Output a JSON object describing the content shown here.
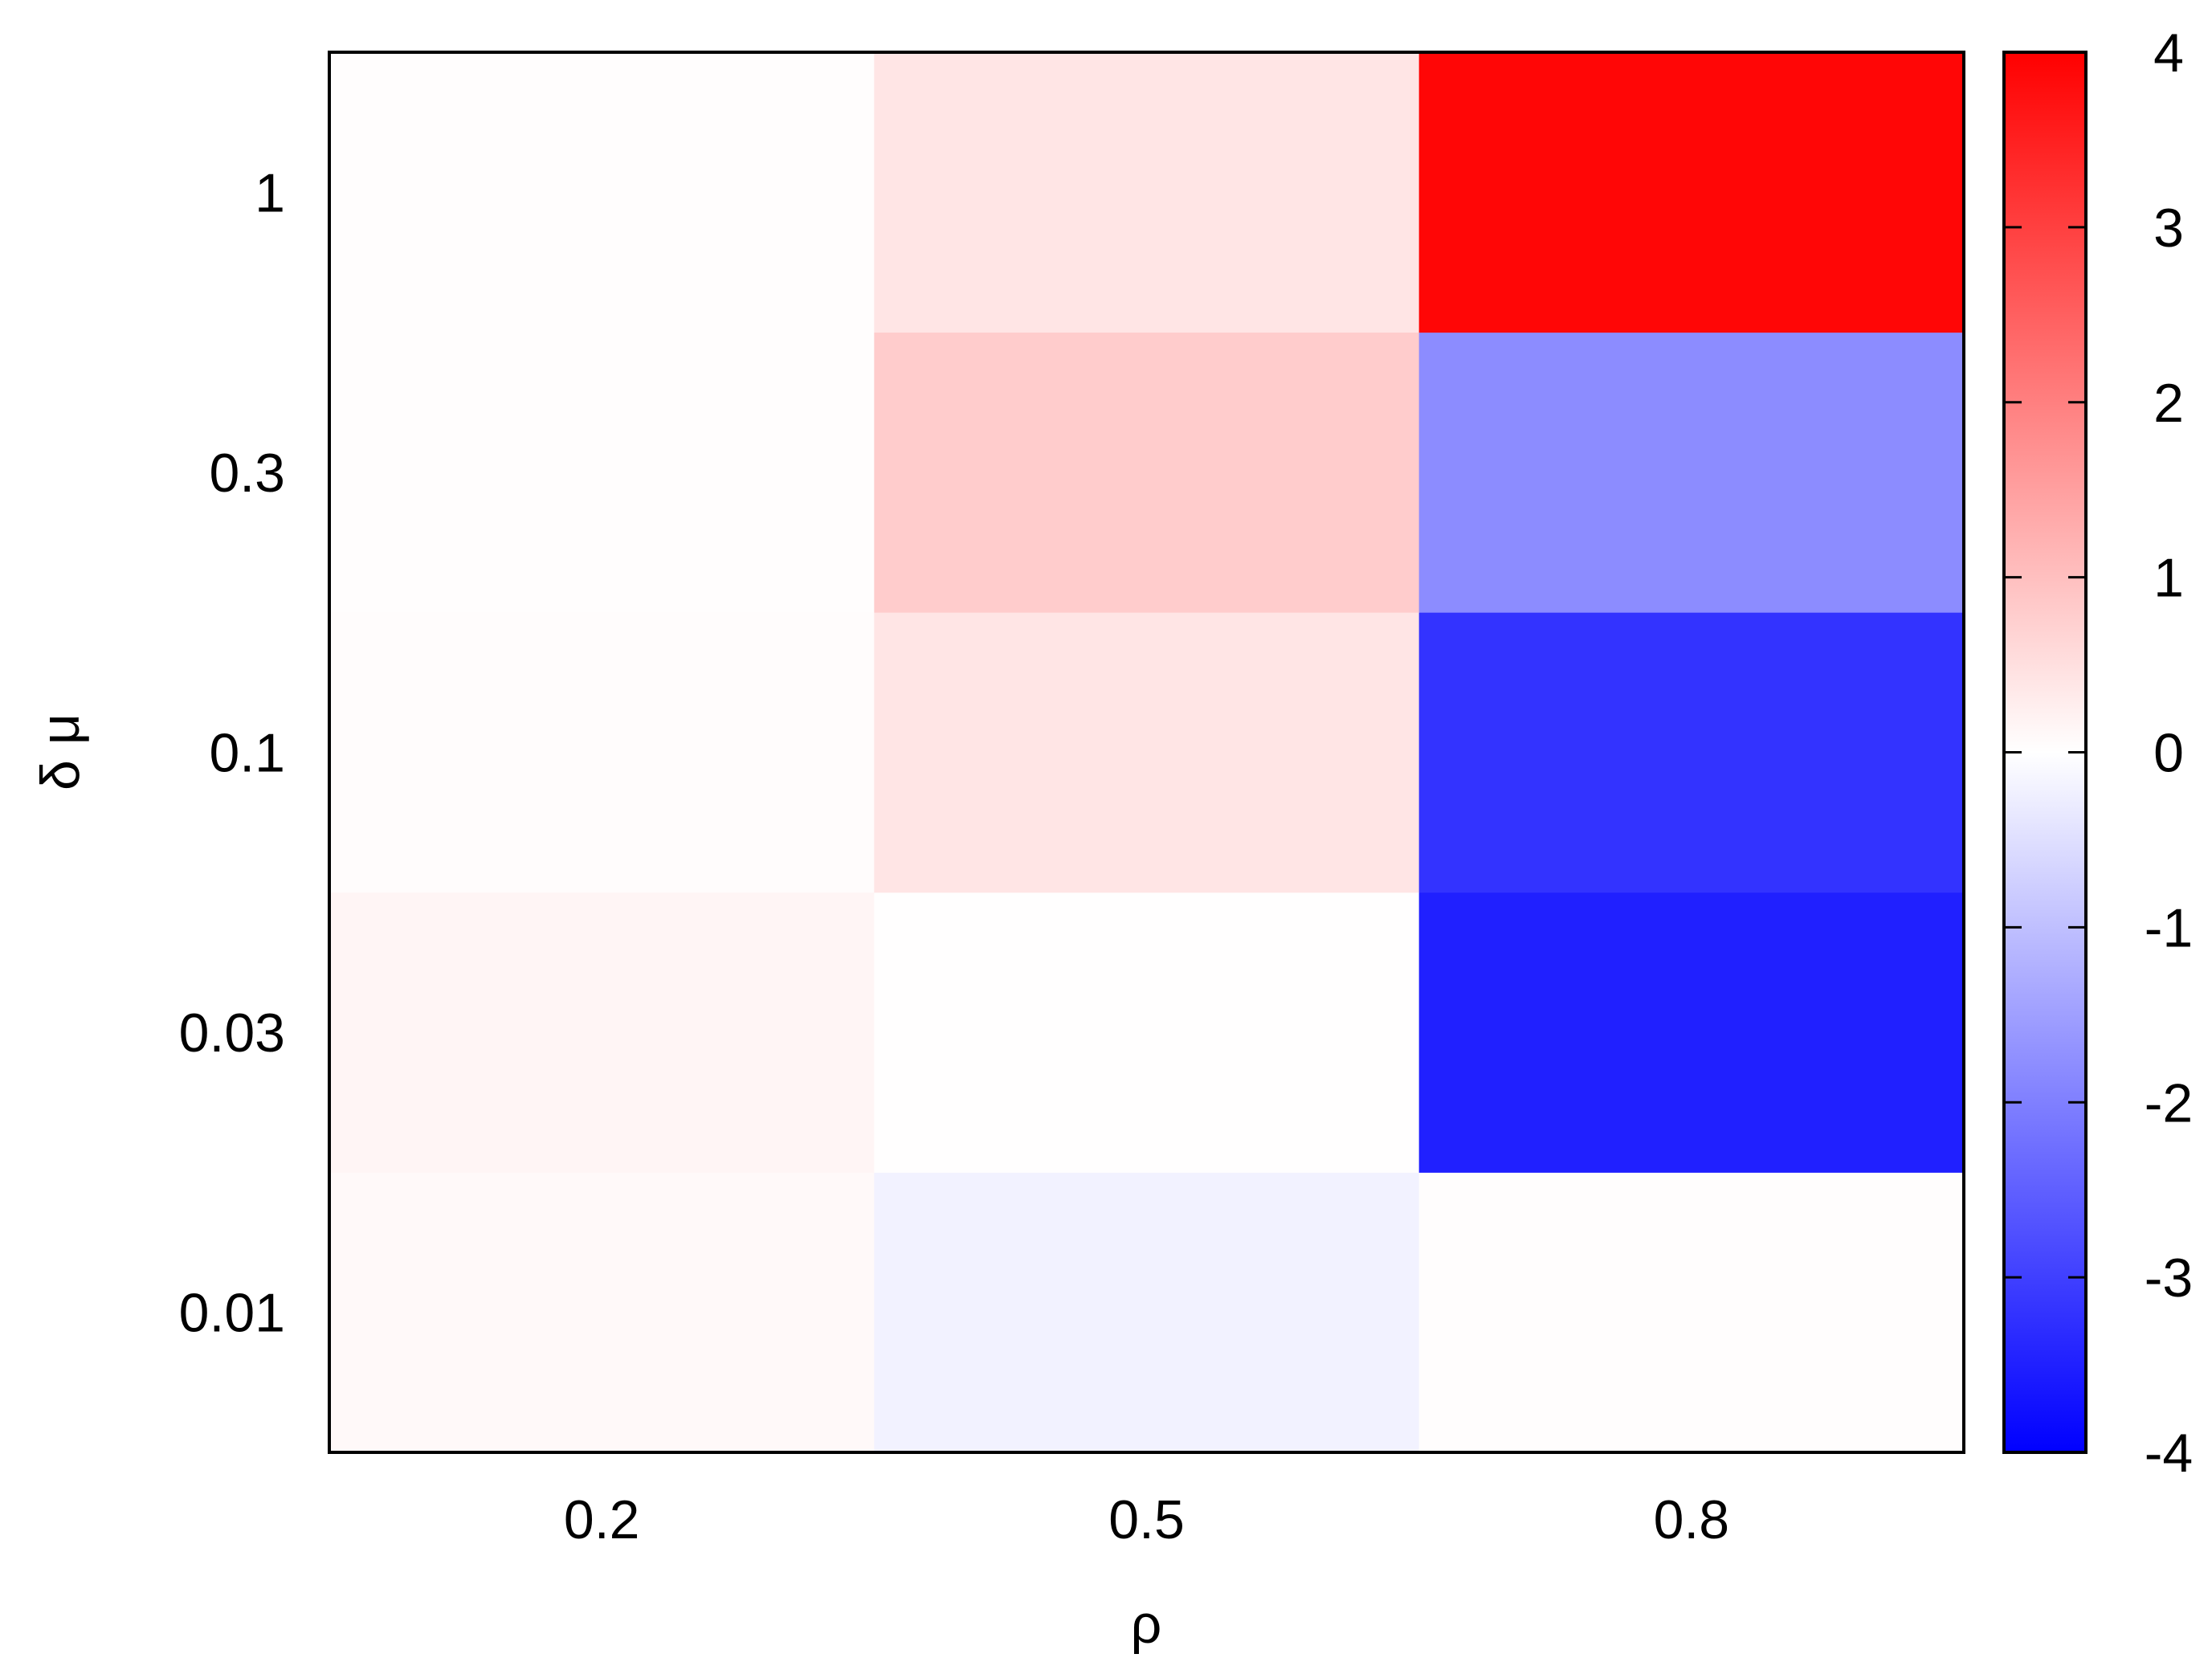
{
  "chart_data": {
    "type": "heatmap",
    "xlabel": "ρ",
    "ylabel": "δ μ",
    "x_categories": [
      "0.2",
      "0.5",
      "0.8"
    ],
    "y_categories": [
      "0.01",
      "0.03",
      "0.1",
      "0.3",
      "1"
    ],
    "values": [
      [
        0.1,
        -0.2,
        0.03
      ],
      [
        0.15,
        0.01,
        -3.5
      ],
      [
        0.05,
        0.4,
        -3.2
      ],
      [
        0.03,
        0.8,
        -1.8
      ],
      [
        0.03,
        0.4,
        3.9
      ]
    ],
    "colorbar": {
      "range": [
        -4,
        4
      ],
      "ticks": [
        "4",
        "3",
        "2",
        "1",
        "0",
        "-1",
        "-2",
        "-3",
        "-4"
      ],
      "colormap": {
        "low": "#0000ff",
        "mid": "#ffffff",
        "high": "#ff0000"
      }
    },
    "grid": false
  }
}
